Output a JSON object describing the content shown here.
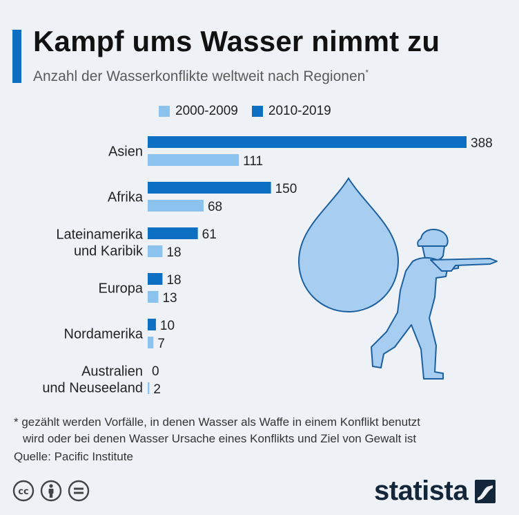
{
  "header": {
    "title": "Kampf ums Wasser nimmt zu",
    "subtitle": "Anzahl der Wasserkonflikte weltweit nach Regionen",
    "subtitle_mark": "*"
  },
  "colors": {
    "accent": "#0d6fc2",
    "series_2010": "#0d6fc2",
    "series_2000": "#8cc3ee",
    "drop": "#a7cdf0",
    "drop_stroke": "#1b5f9e",
    "brand": "#14263a"
  },
  "chart_data": {
    "type": "bar",
    "orientation": "horizontal",
    "categories": [
      [
        "Asien"
      ],
      [
        "Afrika"
      ],
      [
        "Lateinamerika",
        "und Karibik"
      ],
      [
        "Europa"
      ],
      [
        "Nordamerika"
      ],
      [
        "Australien",
        "und Neuseeland"
      ]
    ],
    "series": [
      {
        "name": "2010-2019",
        "values": [
          388,
          150,
          61,
          18,
          10,
          0
        ]
      },
      {
        "name": "2000-2009",
        "values": [
          111,
          68,
          18,
          13,
          7,
          2
        ]
      }
    ],
    "xlim": [
      0,
      388
    ],
    "grid": false,
    "legend_position": "top"
  },
  "footer": {
    "footnote_line1": "* gezählt werden Vorfälle, in denen Wasser als Waffe in einem Konflikt benutzt",
    "footnote_line2": "wird oder bei denen Wasser Ursache eines Konflikts und Ziel von Gewalt ist",
    "source": "Quelle: Pacific Institute",
    "brand": "statista",
    "icons": [
      "cc-icon",
      "by-attribution-icon",
      "no-derivatives-icon"
    ]
  }
}
